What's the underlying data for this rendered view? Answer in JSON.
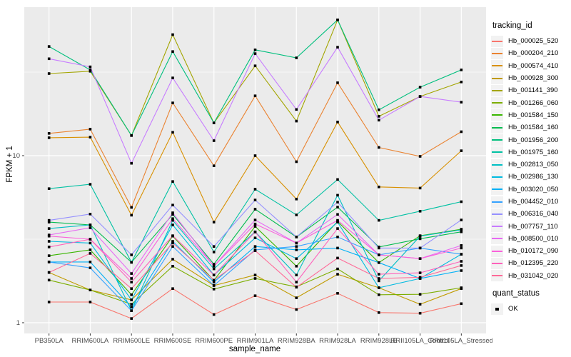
{
  "chart_data": {
    "type": "line",
    "title": "",
    "xlabel": "sample_name",
    "ylabel": "FPKM + 1",
    "y_scale": "log10",
    "y_ticks": [
      1,
      10
    ],
    "y_minor_gridlines": [
      3.162,
      31.62
    ],
    "ylim": [
      0.87,
      77
    ],
    "grid": true,
    "legend_position": "right",
    "legend_title": "tracking_id",
    "point_marker": "black-square",
    "quant_legend": {
      "title": "quant_status",
      "items": [
        {
          "label": "OK",
          "marker": "black-square"
        }
      ]
    },
    "categories": [
      "PB350LA",
      "RRIM600LA",
      "RRIM600LE",
      "RRIM600SE",
      "RRIM600PE",
      "RRIM901LA",
      "RRIM928BA",
      "RRIM928LA",
      "RRIM928LE",
      "RRII105LA_Control",
      "RRII105LA_Stressed"
    ],
    "series": [
      {
        "name": "Hb_000025_520",
        "color": "#F8766D",
        "values": [
          1.33,
          1.33,
          1.06,
          1.6,
          1.12,
          1.45,
          1.2,
          1.5,
          1.15,
          1.14,
          1.3
        ]
      },
      {
        "name": "Hb_000204_210",
        "color": "#EA8331",
        "values": [
          13.6,
          14.4,
          4.9,
          20.7,
          8.7,
          22.8,
          9.2,
          27.3,
          11.2,
          9.9,
          13.9
        ]
      },
      {
        "name": "Hb_000574_410",
        "color": "#D89000",
        "values": [
          12.8,
          12.9,
          4.4,
          13.8,
          4.0,
          10.0,
          5.5,
          15.9,
          6.5,
          6.4,
          10.7
        ]
      },
      {
        "name": "Hb_000928_300",
        "color": "#C09B00",
        "values": [
          2.0,
          1.57,
          1.37,
          2.4,
          1.67,
          1.93,
          1.41,
          1.95,
          1.62,
          1.29,
          1.6
        ]
      },
      {
        "name": "Hb_001141_390",
        "color": "#A3A500",
        "values": [
          31,
          32,
          13.2,
          53,
          15.7,
          34.5,
          16.1,
          65,
          17.2,
          22.6,
          27.6
        ]
      },
      {
        "name": "Hb_001266_060",
        "color": "#7CAE00",
        "values": [
          1.8,
          1.57,
          1.29,
          2.18,
          1.59,
          1.84,
          1.64,
          2.1,
          1.47,
          1.48,
          1.62
        ]
      },
      {
        "name": "Hb_001584_150",
        "color": "#39B600",
        "values": [
          2.52,
          2.73,
          1.47,
          3.3,
          1.79,
          3.77,
          2.18,
          4.04,
          2.29,
          3.32,
          3.63
        ]
      },
      {
        "name": "Hb_001584_160",
        "color": "#00BB4E",
        "values": [
          4.0,
          3.85,
          2.3,
          4.45,
          2.24,
          4.78,
          3.26,
          4.92,
          2.84,
          3.18,
          3.5
        ]
      },
      {
        "name": "Hb_001956_200",
        "color": "#00BF7D",
        "values": [
          45,
          32.6,
          13.2,
          42,
          15.7,
          43,
          38.5,
          65,
          18.8,
          25.7,
          32.6
        ]
      },
      {
        "name": "Hb_001975_160",
        "color": "#00C1A3",
        "values": [
          6.35,
          6.74,
          2.3,
          7.0,
          2.65,
          6.3,
          4.42,
          7.2,
          4.1,
          4.65,
          5.3
        ]
      },
      {
        "name": "Hb_002813_050",
        "color": "#00BFC4",
        "values": [
          3.66,
          3.85,
          1.18,
          4.1,
          2.1,
          3.5,
          1.93,
          5.8,
          1.78,
          3.3,
          3.6
        ]
      },
      {
        "name": "Hb_002986_130",
        "color": "#00BAE0",
        "values": [
          3.07,
          3.0,
          1.37,
          3.85,
          1.93,
          3.22,
          2.42,
          4.0,
          1.62,
          1.84,
          2.57
        ]
      },
      {
        "name": "Hb_003020_050",
        "color": "#00B0F6",
        "values": [
          2.31,
          2.31,
          1.24,
          3.07,
          1.75,
          2.86,
          2.73,
          2.8,
          2.29,
          1.84,
          2.05
        ]
      },
      {
        "name": "Hb_004452_010",
        "color": "#35A2FF",
        "values": [
          2.31,
          2.13,
          1.18,
          2.86,
          1.67,
          2.73,
          2.86,
          3.26,
          2.55,
          2.8,
          2.57
        ]
      },
      {
        "name": "Hb_006316_040",
        "color": "#9590FF",
        "values": [
          4.1,
          4.47,
          2.55,
          5.06,
          2.86,
          5.43,
          3.26,
          5.27,
          2.8,
          2.8,
          4.12
        ]
      },
      {
        "name": "Hb_007757_110",
        "color": "#C77CFF",
        "values": [
          38,
          34,
          9.0,
          29.2,
          12.3,
          40.8,
          18.9,
          44.6,
          16.3,
          22.6,
          20.9
        ]
      },
      {
        "name": "Hb_008500_010",
        "color": "#E76BF3",
        "values": [
          3.35,
          3.7,
          1.97,
          4.55,
          2.18,
          4.12,
          3.0,
          4.45,
          2.55,
          2.42,
          2.9
        ]
      },
      {
        "name": "Hb_010172_090",
        "color": "#FA62DB",
        "values": [
          3.3,
          3.16,
          1.84,
          4.2,
          2.18,
          3.9,
          3.0,
          4.1,
          2.55,
          2.42,
          2.8
        ]
      },
      {
        "name": "Hb_012395_220",
        "color": "#FF62BC",
        "values": [
          2.84,
          3.16,
          1.75,
          3.32,
          1.93,
          3.49,
          1.75,
          3.66,
          1.95,
          1.99,
          2.33
        ]
      },
      {
        "name": "Hb_031042_020",
        "color": "#FF6A98",
        "values": [
          2.0,
          2.6,
          1.6,
          3.0,
          1.8,
          2.7,
          1.63,
          2.44,
          1.84,
          1.87,
          2.2
        ]
      }
    ],
    "style": {
      "panel_bg": "#EBEBEB",
      "grid_major": "#FFFFFF",
      "grid_minor": "#F7F7F7",
      "tick_text": "#4D4D4D",
      "tick_mark": "#333333",
      "point_color": "#000000",
      "legend_key_bg": "#F2F2F2"
    }
  }
}
